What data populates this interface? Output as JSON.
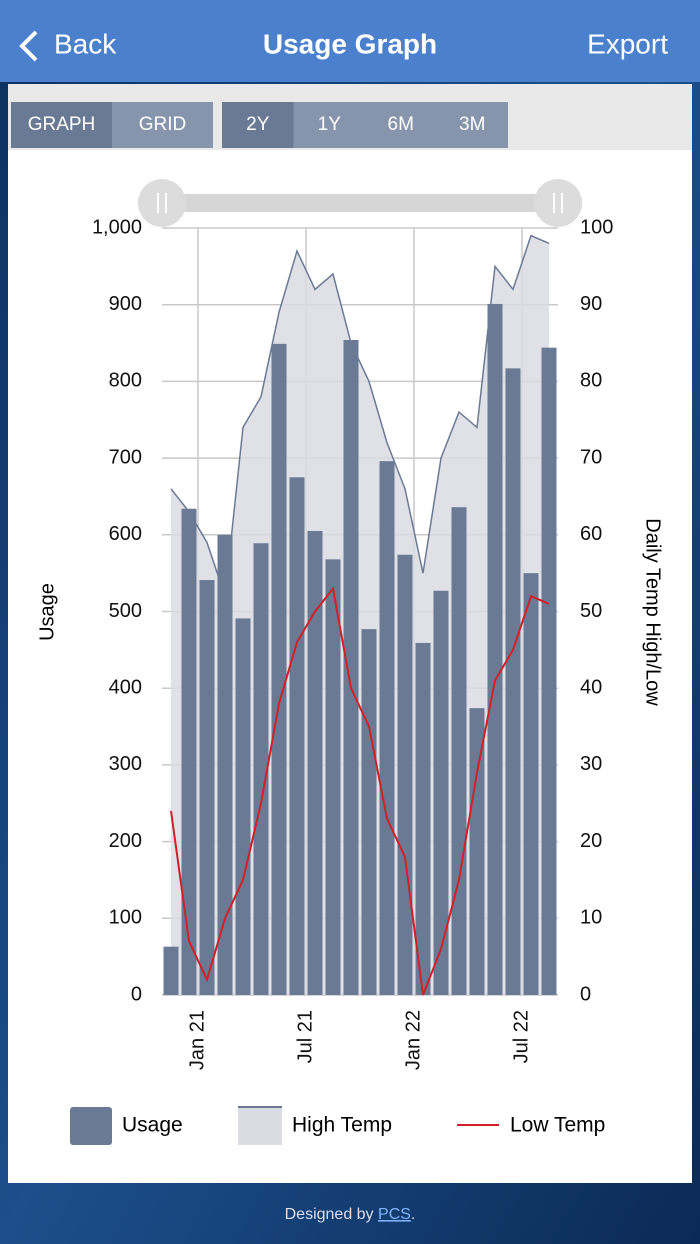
{
  "header": {
    "back": "Back",
    "title": "Usage Graph",
    "export": "Export"
  },
  "view_tabs": [
    "GRAPH",
    "GRID"
  ],
  "range_tabs": [
    "2Y",
    "1Y",
    "6M",
    "3M"
  ],
  "footer": {
    "text": "Designed by",
    "link": "PCS",
    "end": "."
  },
  "chart_data": {
    "type": "combo",
    "categories": [
      null,
      null,
      "Jan 21",
      null,
      null,
      null,
      null,
      null,
      "Jul 21",
      null,
      null,
      null,
      null,
      null,
      "Jan 22",
      null,
      null,
      null,
      null,
      null,
      "Jul 22",
      null
    ],
    "series": [
      {
        "name": "Usage",
        "kind": "bar",
        "color": "#6b7a94",
        "values": [
          63,
          634,
          541,
          600,
          491,
          589,
          849,
          675,
          605,
          568,
          854,
          477,
          696,
          574,
          459,
          527,
          636,
          374,
          901,
          817,
          550,
          844
        ]
      },
      {
        "name": "High Temp",
        "kind": "area",
        "axis": "y2",
        "color": "#6b7a94",
        "fill": "#d9dce3",
        "values": [
          66,
          63,
          59,
          52,
          74,
          78,
          89,
          97,
          92,
          94,
          85,
          80,
          72,
          66,
          55,
          70,
          76,
          74,
          95,
          92,
          99,
          98
        ]
      },
      {
        "name": "Low Temp",
        "kind": "line",
        "axis": "y2",
        "color": "#d0202a",
        "values": [
          24,
          7,
          2,
          10,
          15,
          25,
          38,
          46,
          50,
          53,
          40,
          35,
          23,
          18,
          0,
          6,
          15,
          29,
          41,
          45,
          52,
          51
        ]
      }
    ],
    "ylabel": "Usage",
    "y2label": "Daily Temp High/Low",
    "ylim": [
      0,
      1000
    ],
    "yticks": [
      0,
      100,
      200,
      300,
      400,
      500,
      600,
      700,
      800,
      900,
      {
        "value": 1000,
        "label": "1,000"
      }
    ],
    "y2lim": [
      0,
      100
    ],
    "y2ticks": [
      0,
      10,
      20,
      30,
      40,
      50,
      60,
      70,
      80,
      90,
      100
    ],
    "grid": true
  }
}
